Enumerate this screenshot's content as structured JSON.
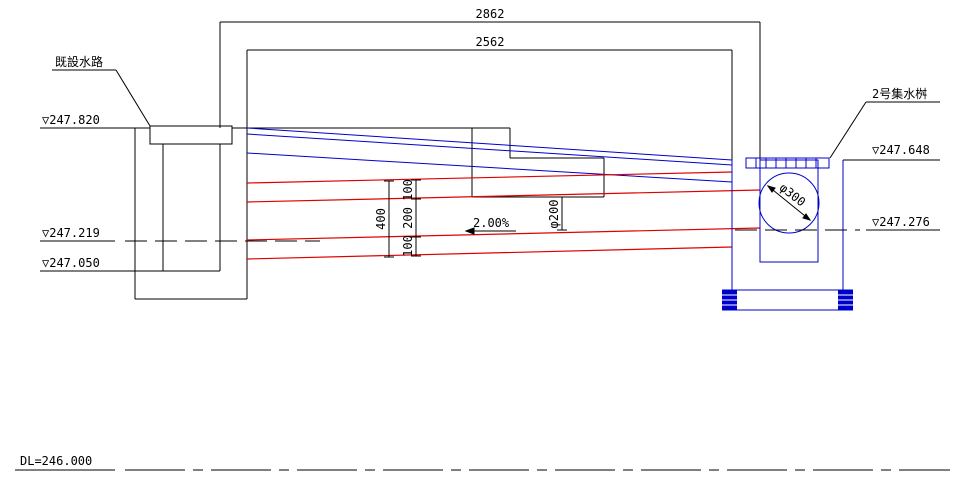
{
  "dimensions": {
    "overall_width": "2862",
    "inner_width": "2562",
    "height_total": "400",
    "height_upper": "100",
    "height_mid": "200",
    "height_lower": "100",
    "pipe_dia_small": "φ200",
    "pipe_dia_large": "φ300",
    "slope": "2.00%"
  },
  "elevations": {
    "existing_top": "▽247.820",
    "existing_mid": "▽247.219",
    "existing_bottom": "▽247.050",
    "basin_top": "▽247.648",
    "basin_pipe": "▽247.276"
  },
  "labels": {
    "existing_channel": "既設水路",
    "catch_basin": "2号集水桝",
    "datum": "DL=246.000"
  },
  "colors": {
    "outline": "#000000",
    "pipe": "#e00000",
    "structure": "#0000cc"
  }
}
